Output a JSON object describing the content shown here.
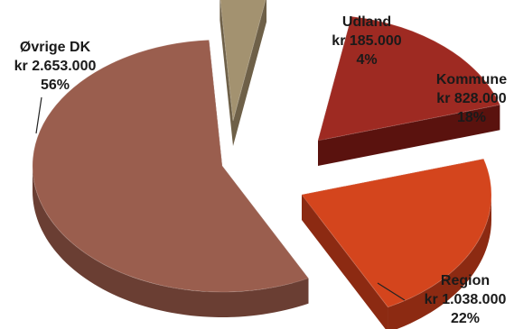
{
  "chart_data": {
    "type": "pie",
    "title": "",
    "legend": "none",
    "slices": [
      {
        "name": "Udland",
        "amount": "kr 185.000",
        "value": 185000,
        "percent": "4%",
        "color": "#A39270",
        "side": "#6E6048"
      },
      {
        "name": "Kommune",
        "amount": "kr 828.000",
        "value": 828000,
        "percent": "18%",
        "color": "#9E2A22",
        "side": "#5A120E"
      },
      {
        "name": "Region",
        "amount": "kr 1.038.000",
        "value": 1038000,
        "percent": "22%",
        "color": "#D4451D",
        "side": "#8C2A12"
      },
      {
        "name": "Øvrige DK",
        "amount": "kr 2.653.000",
        "value": 2653000,
        "percent": "56%",
        "color": "#9A5E4E",
        "side": "#6A3E33"
      }
    ]
  }
}
